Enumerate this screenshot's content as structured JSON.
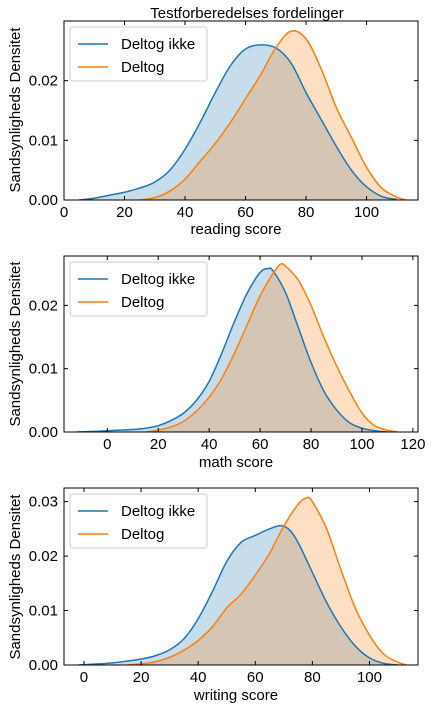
{
  "figure": {
    "title": "Testforberedelses fordelinger"
  },
  "colors": {
    "series_0": "#1f77b4",
    "series_1": "#ff7f0e",
    "fill_0": "#1f77b4",
    "fill_1": "#ff7f0e"
  },
  "chart_data": [
    {
      "type": "area",
      "xlabel": "reading score",
      "ylabel": "Sandsynligheds Densitet",
      "xlim": [
        0,
        117
      ],
      "ylim": [
        0,
        0.03
      ],
      "xticks": [
        0,
        20,
        40,
        60,
        80,
        100
      ],
      "yticks": [
        0.0,
        0.01,
        0.02
      ],
      "ytick_labels": [
        "0.00",
        "0.01",
        "0.02"
      ],
      "legend_position": "top-left",
      "series": [
        {
          "name": "Deltog ikke",
          "x": [
            5,
            10,
            15,
            20,
            25,
            30,
            35,
            40,
            45,
            50,
            55,
            60,
            65,
            70,
            75,
            80,
            85,
            90,
            95,
            100,
            105,
            110
          ],
          "y": [
            0.0,
            0.0003,
            0.0008,
            0.0013,
            0.002,
            0.003,
            0.005,
            0.0085,
            0.013,
            0.018,
            0.0225,
            0.0253,
            0.026,
            0.0255,
            0.023,
            0.018,
            0.0135,
            0.009,
            0.005,
            0.0022,
            0.0006,
            0.0001
          ]
        },
        {
          "name": "Deltog",
          "x": [
            25,
            30,
            35,
            40,
            45,
            50,
            55,
            60,
            65,
            70,
            75,
            80,
            85,
            90,
            95,
            100,
            105,
            110,
            113
          ],
          "y": [
            0.0,
            0.0004,
            0.0015,
            0.0035,
            0.0065,
            0.0095,
            0.013,
            0.017,
            0.021,
            0.0255,
            0.0283,
            0.027,
            0.022,
            0.0155,
            0.0105,
            0.0055,
            0.002,
            0.0005,
            0.0
          ]
        }
      ]
    },
    {
      "type": "area",
      "xlabel": "math score",
      "ylabel": "Sandsynligheds Densitet",
      "xlim": [
        -17,
        122
      ],
      "ylim": [
        0,
        0.0278
      ],
      "xticks": [
        0,
        20,
        40,
        60,
        80,
        100,
        120
      ],
      "yticks": [
        0.0,
        0.01,
        0.02
      ],
      "ytick_labels": [
        "0.00",
        "0.01",
        "0.02"
      ],
      "legend_position": "top-left",
      "series": [
        {
          "name": "Deltog ikke",
          "x": [
            -12,
            -5,
            0,
            5,
            10,
            15,
            20,
            25,
            30,
            35,
            40,
            45,
            50,
            55,
            60,
            63,
            65,
            70,
            75,
            80,
            85,
            90,
            95,
            100,
            105,
            110
          ],
          "y": [
            0.0,
            0.0001,
            0.0002,
            0.0003,
            0.0004,
            0.0006,
            0.001,
            0.0018,
            0.003,
            0.005,
            0.008,
            0.0125,
            0.0175,
            0.022,
            0.0252,
            0.0258,
            0.0255,
            0.022,
            0.0165,
            0.011,
            0.0065,
            0.0035,
            0.0015,
            0.0006,
            0.0002,
            0.0
          ]
        },
        {
          "name": "Deltog",
          "x": [
            15,
            20,
            25,
            30,
            35,
            40,
            45,
            50,
            55,
            60,
            65,
            68,
            70,
            75,
            80,
            85,
            90,
            95,
            100,
            105,
            110,
            114
          ],
          "y": [
            0.0,
            0.0003,
            0.0008,
            0.0017,
            0.0033,
            0.0055,
            0.0085,
            0.0125,
            0.017,
            0.0215,
            0.025,
            0.0265,
            0.0262,
            0.024,
            0.02,
            0.015,
            0.0105,
            0.0065,
            0.003,
            0.001,
            0.0003,
            0.0
          ]
        }
      ]
    },
    {
      "type": "area",
      "xlabel": "writing score",
      "ylabel": "Sandsynligheds Densitet",
      "xlim": [
        -7,
        117
      ],
      "ylim": [
        0,
        0.0325
      ],
      "xticks": [
        0,
        20,
        40,
        60,
        80,
        100
      ],
      "yticks": [
        0.0,
        0.01,
        0.02,
        0.03
      ],
      "ytick_labels": [
        "0.00",
        "0.01",
        "0.02",
        "0.03"
      ],
      "legend_position": "top-left",
      "series": [
        {
          "name": "Deltog ikke",
          "x": [
            -2,
            5,
            10,
            15,
            20,
            25,
            30,
            35,
            40,
            45,
            50,
            55,
            60,
            65,
            69,
            72,
            75,
            80,
            85,
            90,
            95,
            100,
            105,
            110
          ],
          "y": [
            0.0,
            0.0002,
            0.0004,
            0.0007,
            0.0011,
            0.0017,
            0.0028,
            0.0048,
            0.0085,
            0.0135,
            0.019,
            0.0225,
            0.0238,
            0.025,
            0.0256,
            0.0248,
            0.0225,
            0.017,
            0.0115,
            0.007,
            0.0035,
            0.0013,
            0.0003,
            0.0
          ]
        },
        {
          "name": "Deltog",
          "x": [
            15,
            20,
            25,
            30,
            35,
            40,
            45,
            50,
            55,
            60,
            65,
            70,
            75,
            78,
            80,
            85,
            90,
            95,
            100,
            105,
            110,
            113
          ],
          "y": [
            0.0,
            0.0002,
            0.0006,
            0.0014,
            0.0027,
            0.0045,
            0.007,
            0.0105,
            0.013,
            0.0165,
            0.0205,
            0.0255,
            0.0295,
            0.0307,
            0.03,
            0.025,
            0.0175,
            0.0105,
            0.0055,
            0.002,
            0.0005,
            0.0
          ]
        }
      ]
    }
  ]
}
